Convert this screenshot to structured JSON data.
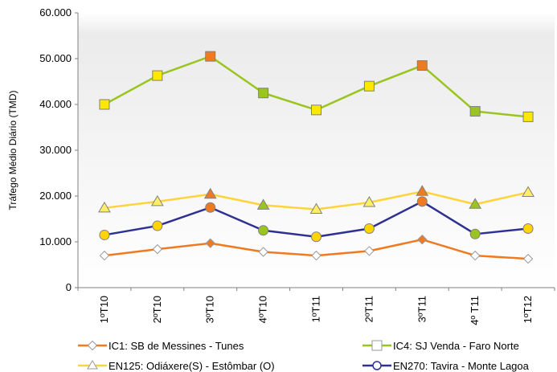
{
  "chart_data": {
    "type": "line",
    "title": "",
    "xlabel": "",
    "ylabel": "Tráfego Médio Diário (TMD)",
    "categories": [
      "1ºT10",
      "2ºT10",
      "3ºT10",
      "4ºT10",
      "1ºT11",
      "2ºT11",
      "3ºT11",
      "4º T11",
      "1ºT12"
    ],
    "ylim": [
      0,
      60000
    ],
    "yticks": [
      0,
      10000,
      20000,
      30000,
      40000,
      50000,
      60000
    ],
    "ytick_labels": [
      "0",
      "10.000",
      "20.000",
      "30.000",
      "40.000",
      "50.000",
      "60.000"
    ],
    "grid": false,
    "legend_position": "bottom",
    "series": [
      {
        "name": "IC1: SB de Messines - Tunes",
        "color": "#f07a20",
        "marker": "diamond",
        "values": [
          7000,
          8400,
          9700,
          7800,
          7000,
          8000,
          10500,
          7000,
          6300
        ],
        "marker_fills": [
          "#ffffff",
          "#ffffff",
          "#f07a20",
          "#ffffff",
          "#ffffff",
          "#ffffff",
          "#f07a20",
          "#ffffff",
          "#ffffff"
        ]
      },
      {
        "name": "IC4: SJ Venda - Faro Norte",
        "color": "#99c51e",
        "marker": "square",
        "values": [
          40000,
          46300,
          50500,
          42500,
          38800,
          44000,
          48500,
          38500,
          37300
        ],
        "marker_fills": [
          "#ffe800",
          "#ffe800",
          "#f07a20",
          "#99c51e",
          "#ffe800",
          "#ffe800",
          "#f07a20",
          "#99c51e",
          "#ffe800"
        ]
      },
      {
        "name": "EN125: Odiáxere(S) - Estômbar (O)",
        "color": "#ffd33a",
        "marker": "triangle",
        "values": [
          17400,
          18800,
          20400,
          18000,
          17100,
          18600,
          21000,
          18200,
          20800
        ],
        "marker_fills": [
          "#ffee66",
          "#ffee66",
          "#f07a20",
          "#99c51e",
          "#ffee66",
          "#ffee66",
          "#f07a20",
          "#99c51e",
          "#ffee66"
        ]
      },
      {
        "name": "EN270: Tavira - Monte Lagoa",
        "color": "#2e3192",
        "marker": "circle",
        "values": [
          11500,
          13500,
          17500,
          12500,
          11100,
          12900,
          18800,
          11700,
          12900
        ],
        "marker_fills": [
          "#ffd400",
          "#ffd400",
          "#f07a20",
          "#99c51e",
          "#ffd400",
          "#ffd400",
          "#f07a20",
          "#99c51e",
          "#ffd400"
        ]
      }
    ],
    "plot_background": "gradient #e6e6e6 to #ffffff"
  }
}
